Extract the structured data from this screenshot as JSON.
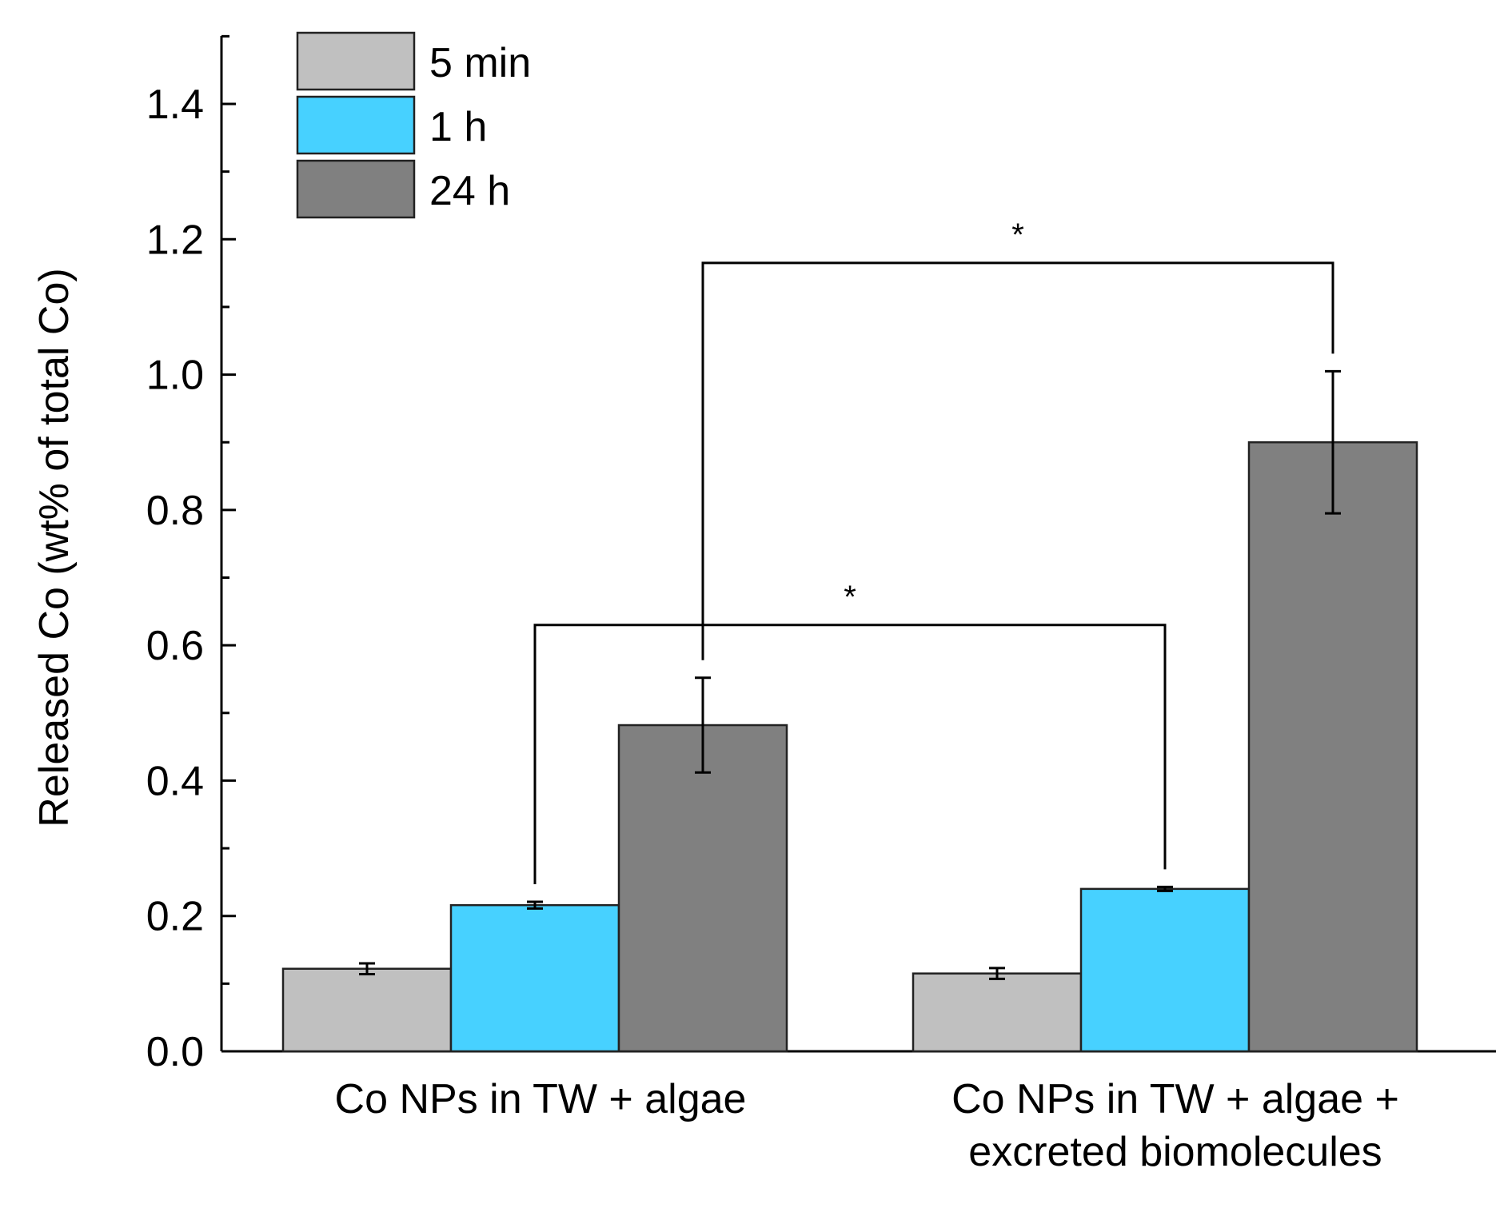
{
  "chart_data": {
    "type": "bar",
    "title": "",
    "xlabel": "",
    "ylabel": "Released Co (wt% of total Co)",
    "ylim": [
      0,
      1.5
    ],
    "yticks": [
      "0.0",
      "0.2",
      "0.4",
      "0.6",
      "0.8",
      "1.0",
      "1.2",
      "1.4"
    ],
    "categories": [
      [
        "Co NPs in TW + algae"
      ],
      [
        "Co NPs in TW + algae +",
        "excreted biomolecules"
      ]
    ],
    "series": [
      {
        "name": "5 min",
        "color": "#c0c0c0",
        "values": [
          0.122,
          0.115
        ],
        "errors": [
          0.008,
          0.008
        ]
      },
      {
        "name": "1 h",
        "color": "#47d1ff",
        "values": [
          0.216,
          0.24
        ],
        "errors": [
          0.005,
          0.003
        ]
      },
      {
        "name": "24 h",
        "color": "#808080",
        "values": [
          0.482,
          0.9
        ],
        "errors": [
          0.07,
          0.105
        ]
      }
    ],
    "legend": {
      "position": "top-left"
    },
    "significance": [
      {
        "label": "*",
        "from": {
          "category": 0,
          "series": 1
        },
        "to": {
          "category": 1,
          "series": 1
        },
        "level": 0.63
      },
      {
        "label": "*",
        "from": {
          "category": 0,
          "series": 2
        },
        "to": {
          "category": 1,
          "series": 2
        },
        "level": 1.165
      }
    ]
  }
}
